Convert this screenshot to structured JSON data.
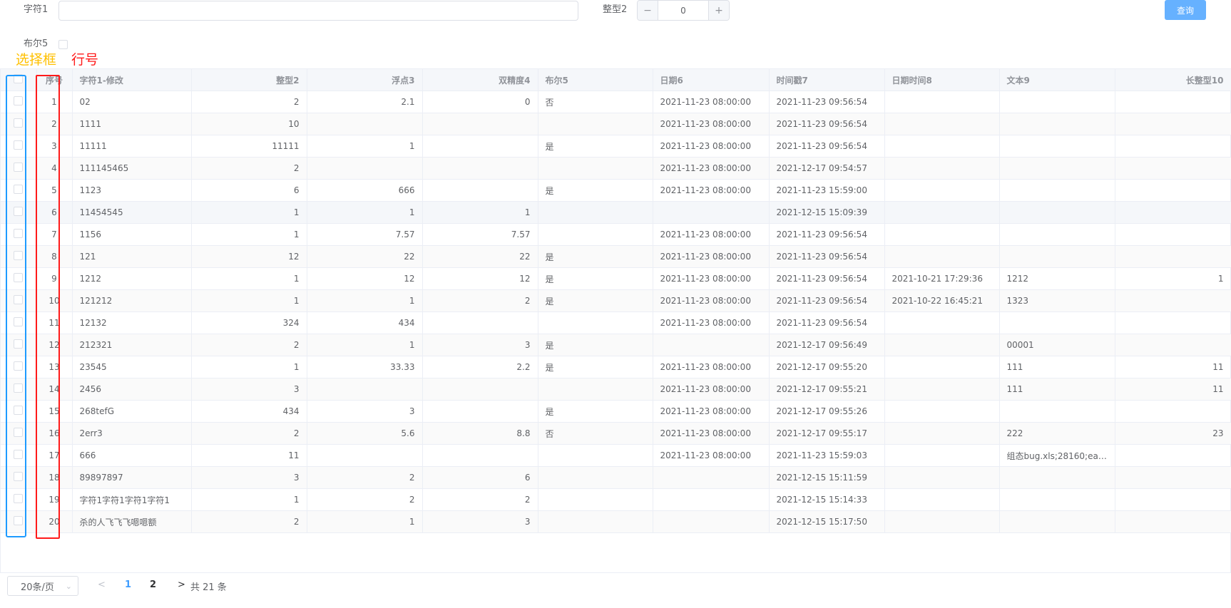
{
  "filters": {
    "field1_label": "字符1",
    "field1_value": "",
    "field2_label": "整型2",
    "field2_value": "0",
    "minus": "−",
    "plus": "+",
    "field5_label": "布尔5",
    "query_button": "查询"
  },
  "annotations": {
    "checkbox_column": "选择框",
    "row_number_column": "行号"
  },
  "table": {
    "headers": [
      "序号",
      "字符1-修改",
      "整型2",
      "浮点3",
      "双精度4",
      "布尔5",
      "日期6",
      "时间戳7",
      "日期时间8",
      "文本9",
      "长整型10"
    ],
    "rows": [
      [
        "1",
        "02",
        "2",
        "2.1",
        "0",
        "否",
        "2021-11-23 08:00:00",
        "2021-11-23 09:56:54",
        "",
        "",
        ""
      ],
      [
        "2",
        "1111",
        "10",
        "",
        "",
        "",
        "2021-11-23 08:00:00",
        "2021-11-23 09:56:54",
        "",
        "",
        ""
      ],
      [
        "3",
        "11111",
        "11111",
        "1",
        "",
        "是",
        "2021-11-23 08:00:00",
        "2021-11-23 09:56:54",
        "",
        "",
        ""
      ],
      [
        "4",
        "111145465",
        "2",
        "",
        "",
        "",
        "2021-11-23 08:00:00",
        "2021-12-17 09:54:57",
        "",
        "",
        ""
      ],
      [
        "5",
        "1123",
        "6",
        "666",
        "",
        "是",
        "2021-11-23 08:00:00",
        "2021-11-23 15:59:00",
        "",
        "",
        ""
      ],
      [
        "6",
        "11454545",
        "1",
        "1",
        "1",
        "",
        "",
        "2021-12-15 15:09:39",
        "",
        "",
        ""
      ],
      [
        "7",
        "1156",
        "1",
        "7.57",
        "7.57",
        "",
        "2021-11-23 08:00:00",
        "2021-11-23 09:56:54",
        "",
        "",
        ""
      ],
      [
        "8",
        "121",
        "12",
        "22",
        "22",
        "是",
        "2021-11-23 08:00:00",
        "2021-11-23 09:56:54",
        "",
        "",
        ""
      ],
      [
        "9",
        "1212",
        "1",
        "12",
        "12",
        "是",
        "2021-11-23 08:00:00",
        "2021-11-23 09:56:54",
        "2021-10-21 17:29:36",
        "1212",
        "1"
      ],
      [
        "10",
        "121212",
        "1",
        "1",
        "2",
        "是",
        "2021-11-23 08:00:00",
        "2021-11-23 09:56:54",
        "2021-10-22 16:45:21",
        "1323",
        ""
      ],
      [
        "11",
        "12132",
        "324",
        "434",
        "",
        "",
        "2021-11-23 08:00:00",
        "2021-11-23 09:56:54",
        "",
        "",
        ""
      ],
      [
        "12",
        "212321",
        "2",
        "1",
        "3",
        "是",
        "",
        "2021-12-17 09:56:49",
        "",
        "00001",
        ""
      ],
      [
        "13",
        "23545",
        "1",
        "33.33",
        "2.2",
        "是",
        "2021-11-23 08:00:00",
        "2021-12-17 09:55:20",
        "",
        "111",
        "11"
      ],
      [
        "14",
        "2456",
        "3",
        "",
        "",
        "",
        "2021-11-23 08:00:00",
        "2021-12-17 09:55:21",
        "",
        "111",
        "11"
      ],
      [
        "15",
        "268tefG",
        "434",
        "3",
        "",
        "是",
        "2021-11-23 08:00:00",
        "2021-12-17 09:55:26",
        "",
        "",
        ""
      ],
      [
        "16",
        "2err3",
        "2",
        "5.6",
        "8.8",
        "否",
        "2021-11-23 08:00:00",
        "2021-12-17 09:55:17",
        "",
        "222",
        "23"
      ],
      [
        "17",
        "666",
        "11",
        "",
        "",
        "",
        "2021-11-23 08:00:00",
        "2021-11-23 15:59:03",
        "",
        "组态bug.xls;28160;eap5c...",
        ""
      ],
      [
        "18",
        "89897897",
        "3",
        "2",
        "6",
        "",
        "",
        "2021-12-15 15:11:59",
        "",
        "",
        ""
      ],
      [
        "19",
        "字符1字符1字符1字符1",
        "1",
        "2",
        "2",
        "",
        "",
        "2021-12-15 15:14:33",
        "",
        "",
        ""
      ],
      [
        "20",
        "杀的人飞飞飞嗯嗯额",
        "2",
        "1",
        "3",
        "",
        "",
        "2021-12-15 15:17:50",
        "",
        "",
        ""
      ]
    ]
  },
  "pagination": {
    "page_size": "20条/页",
    "pages": [
      "1",
      "2"
    ],
    "current_page": "1",
    "total": "共 21 条"
  },
  "colors": {
    "accent": "#409eff",
    "query_button": "#66b1ff",
    "annotation_blue": "#1e9bff",
    "annotation_red": "#ff1a1a",
    "annotation_yellow": "#ffc000"
  }
}
